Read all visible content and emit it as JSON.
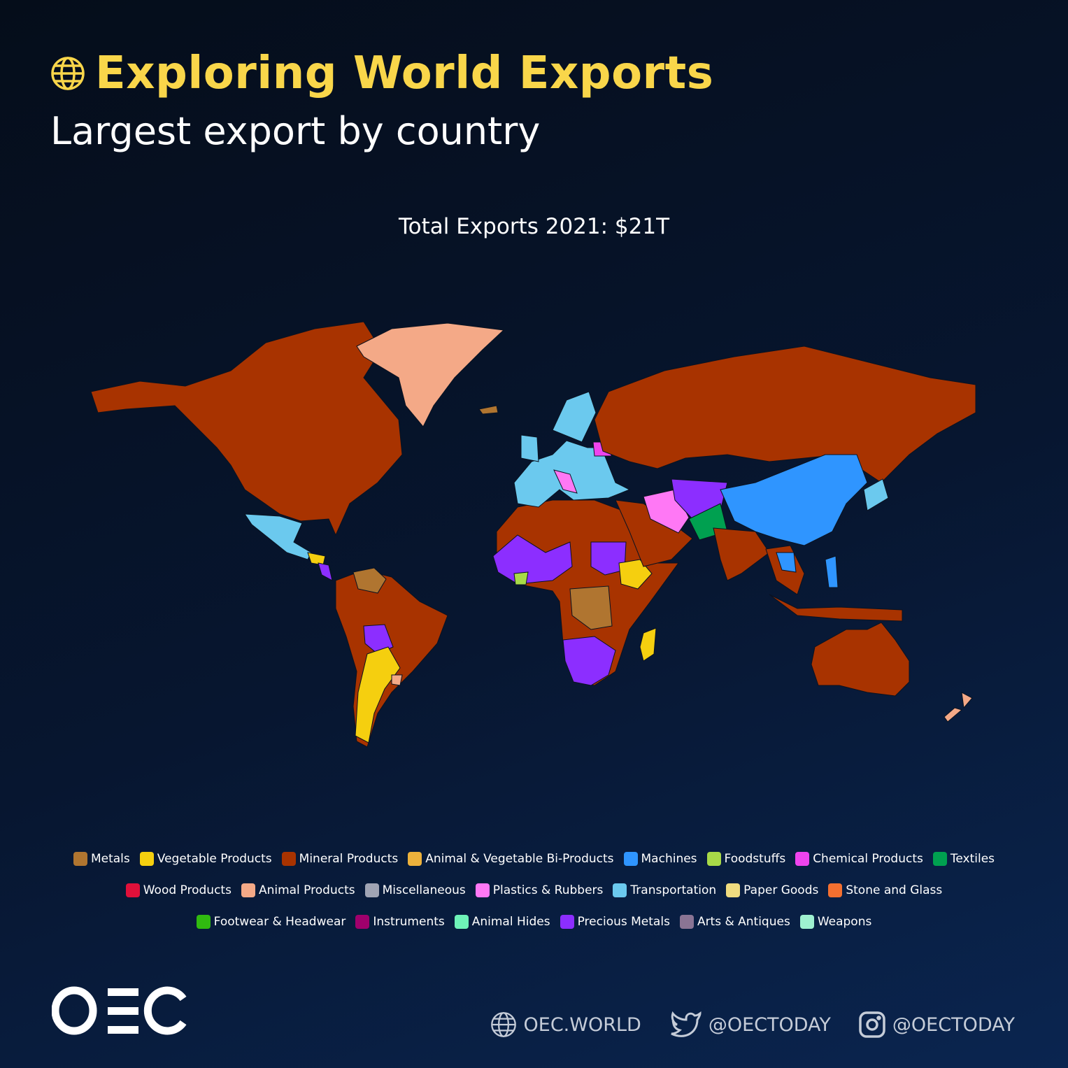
{
  "header": {
    "title": "Exploring World Exports",
    "subtitle": "Largest export by country",
    "icon": "globe-icon",
    "title_color": "#F9D64A"
  },
  "map": {
    "caption": "Total Exports 2021: $21T"
  },
  "legend": [
    [
      {
        "label": "Metals",
        "color": "#B07530"
      },
      {
        "label": "Vegetable Products",
        "color": "#F5CF0F"
      },
      {
        "label": "Mineral Products",
        "color": "#A83300"
      },
      {
        "label": "Animal & Vegetable Bi-Products",
        "color": "#EDB23C"
      },
      {
        "label": "Machines",
        "color": "#2F95FF"
      },
      {
        "label": "Foodstuffs",
        "color": "#A8DA48"
      },
      {
        "label": "Chemical Products",
        "color": "#EE44EE"
      },
      {
        "label": "Textiles",
        "color": "#00A050"
      }
    ],
    [
      {
        "label": "Wood Products",
        "color": "#E0103A"
      },
      {
        "label": "Animal Products",
        "color": "#F4A987"
      },
      {
        "label": "Miscellaneous",
        "color": "#A0A4B4"
      },
      {
        "label": "Plastics & Rubbers",
        "color": "#FF78F5"
      },
      {
        "label": "Transportation",
        "color": "#6BC9EE"
      },
      {
        "label": "Paper Goods",
        "color": "#F0DC80"
      },
      {
        "label": "Stone and Glass",
        "color": "#F47030"
      }
    ],
    [
      {
        "label": "Footwear & Headwear",
        "color": "#30BA10"
      },
      {
        "label": "Instruments",
        "color": "#A0006C"
      },
      {
        "label": "Animal Hides",
        "color": "#6EF2B8"
      },
      {
        "label": "Precious Metals",
        "color": "#8C2EFF"
      },
      {
        "label": "Arts & Antiques",
        "color": "#8A7494"
      },
      {
        "label": "Weapons",
        "color": "#9EF0D0"
      }
    ]
  ],
  "footer": {
    "logo": "OEC",
    "website": "OEC.WORLD",
    "twitter": "@OECTODAY",
    "instagram": "@OECTODAY"
  }
}
